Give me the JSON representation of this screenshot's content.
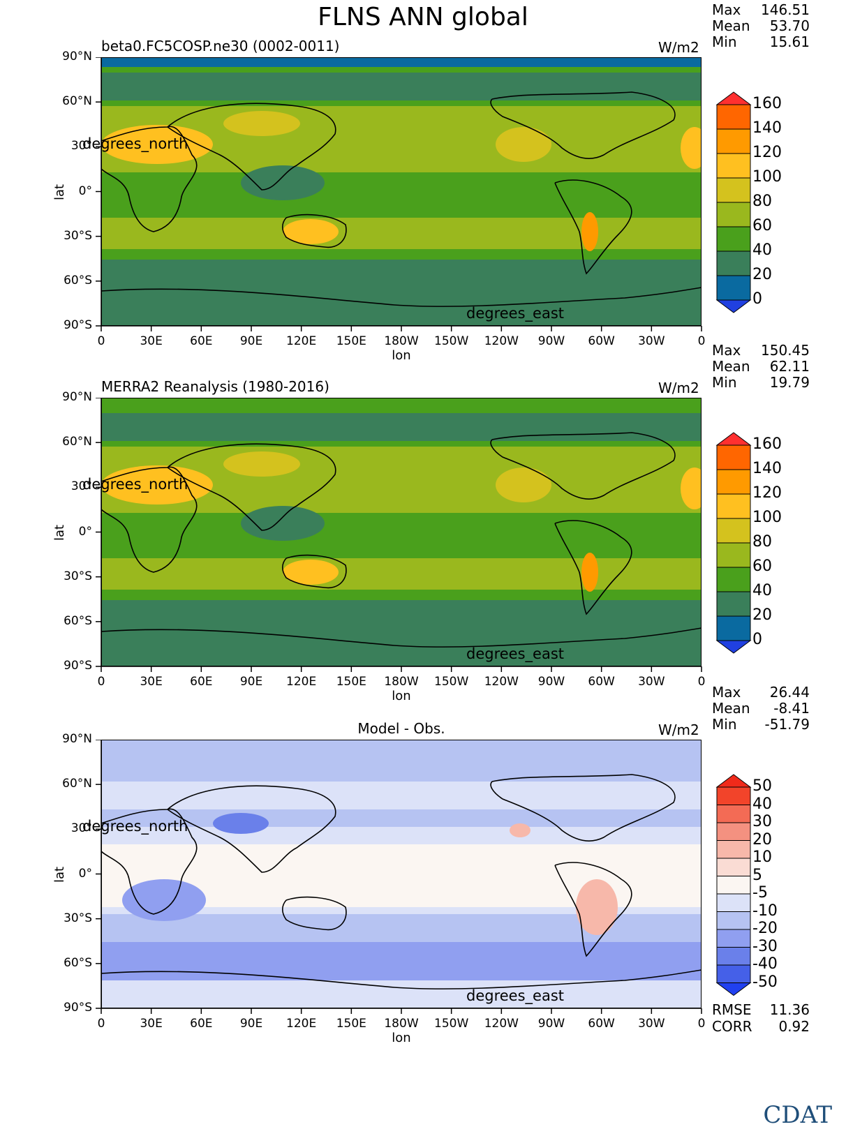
{
  "title": "FLNS ANN global",
  "x_ticks": [
    "0",
    "30E",
    "60E",
    "90E",
    "120E",
    "150E",
    "180W",
    "150W",
    "120W",
    "90W",
    "60W",
    "30W",
    "0"
  ],
  "y_ticks": [
    "90°N",
    "60°N",
    "30°",
    "0°",
    "30°S",
    "60°S",
    "90°S"
  ],
  "xlabel": "lon",
  "ylabel": "lat",
  "units_label": "W/m2",
  "north_label": "degrees_north",
  "east_label": "degrees_east",
  "panels": [
    {
      "title": "beta0.FC5COSP.ne30 (0002-0011)",
      "stats": [
        {
          "label": "Max",
          "value": "146.51"
        },
        {
          "label": "Mean",
          "value": "53.70"
        },
        {
          "label": "Min",
          "value": "15.61"
        }
      ],
      "colorbar_labels": [
        "160",
        "140",
        "120",
        "100",
        "80",
        "60",
        "40",
        "20",
        "0"
      ],
      "colorbar_colors": [
        "#ff6600",
        "#ff9a00",
        "#ffc020",
        "#d4c21e",
        "#9ab81e",
        "#4aa01c",
        "#3a7f5a",
        "#0a6aa0"
      ]
    },
    {
      "title": "MERRA2 Reanalysis (1980-2016)",
      "stats": [
        {
          "label": "Max",
          "value": "150.45"
        },
        {
          "label": "Mean",
          "value": "62.11"
        },
        {
          "label": "Min",
          "value": "19.79"
        }
      ],
      "colorbar_labels": [
        "160",
        "140",
        "120",
        "100",
        "80",
        "60",
        "40",
        "20",
        "0"
      ],
      "colorbar_colors": [
        "#ff6600",
        "#ff9a00",
        "#ffc020",
        "#d4c21e",
        "#9ab81e",
        "#4aa01c",
        "#3a7f5a",
        "#0a6aa0"
      ]
    },
    {
      "title": "Model - Obs.",
      "stats": [
        {
          "label": "Max",
          "value": "26.44"
        },
        {
          "label": "Mean",
          "value": "-8.41"
        },
        {
          "label": "Min",
          "value": "-51.79"
        }
      ],
      "colorbar_labels": [
        "50",
        "40",
        "30",
        "20",
        "10",
        "5",
        "-5",
        "-10",
        "-20",
        "-30",
        "-40",
        "-50"
      ],
      "colorbar_colors": [
        "#f2442a",
        "#f36b55",
        "#f49180",
        "#f7b8aa",
        "#fadcd4",
        "#fbf6f2",
        "#dce2f8",
        "#b6c3f2",
        "#909ff0",
        "#6a80ea",
        "#4560e8"
      ],
      "bottom_stats": [
        {
          "label": "RMSE",
          "value": "11.36"
        },
        {
          "label": "CORR",
          "value": "0.92"
        }
      ]
    }
  ],
  "logo": "CDAT",
  "chart_data": [
    {
      "type": "heatmap",
      "title": "beta0.FC5COSP.ne30 (0002-0011)",
      "xlabel": "lon",
      "ylabel": "lat",
      "units": "W/m2",
      "levels": [
        0,
        20,
        40,
        60,
        80,
        100,
        120,
        140,
        160
      ],
      "stats": {
        "max": 146.51,
        "mean": 53.7,
        "min": 15.61
      }
    },
    {
      "type": "heatmap",
      "title": "MERRA2 Reanalysis (1980-2016)",
      "xlabel": "lon",
      "ylabel": "lat",
      "units": "W/m2",
      "levels": [
        0,
        20,
        40,
        60,
        80,
        100,
        120,
        140,
        160
      ],
      "stats": {
        "max": 150.45,
        "mean": 62.11,
        "min": 19.79
      }
    },
    {
      "type": "heatmap",
      "title": "Model - Obs.",
      "xlabel": "lon",
      "ylabel": "lat",
      "units": "W/m2",
      "levels": [
        -50,
        -40,
        -30,
        -20,
        -10,
        -5,
        5,
        10,
        20,
        30,
        40,
        50
      ],
      "stats": {
        "max": 26.44,
        "mean": -8.41,
        "min": -51.79,
        "rmse": 11.36,
        "corr": 0.92
      }
    }
  ]
}
